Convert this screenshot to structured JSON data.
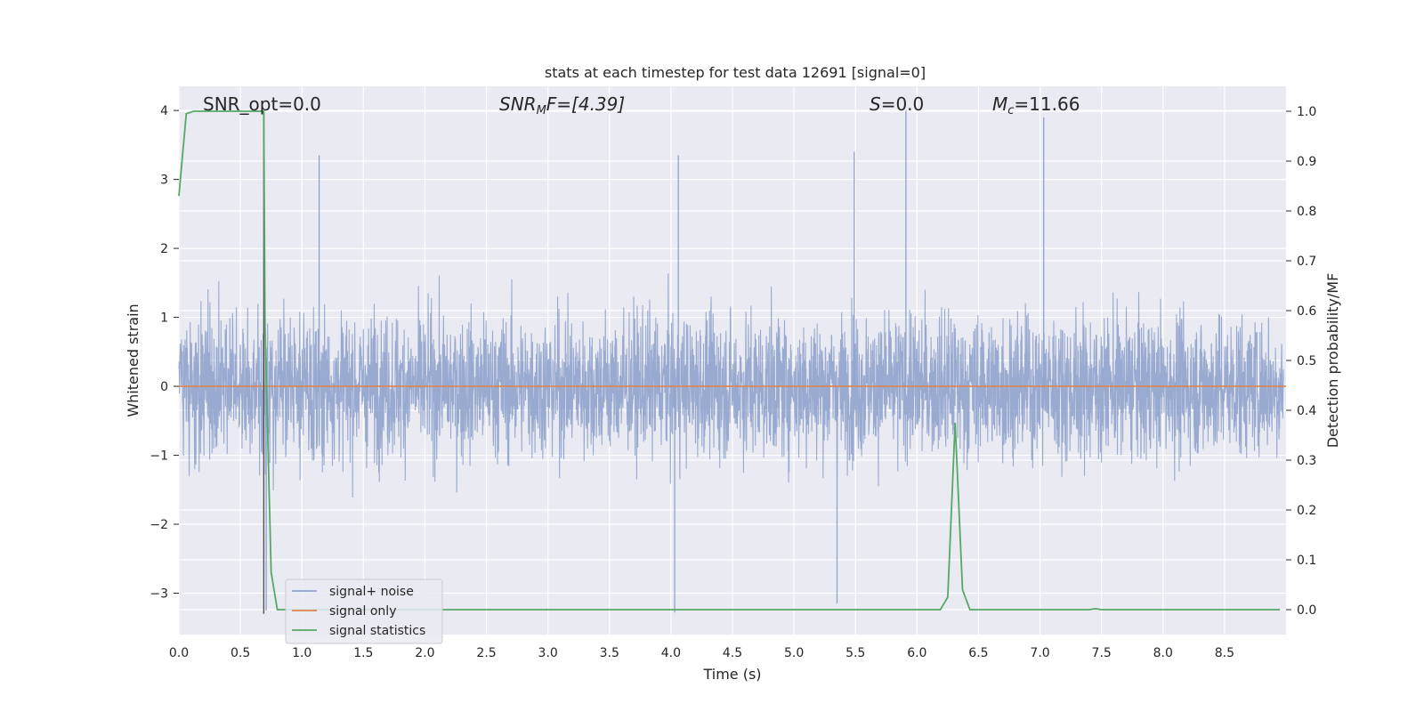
{
  "chart_data": {
    "type": "line",
    "title": "stats at each timestep for test data 12691 [signal=0]",
    "xlabel": "Time (s)",
    "ylabel_left": "Whitened strain",
    "ylabel_right": "Detection probability/MF",
    "xlim": [
      0.0,
      9.0
    ],
    "ylim_left": [
      -3.6,
      4.35
    ],
    "ylim_right": [
      -0.05,
      1.05
    ],
    "xticks": [
      "0.0",
      "0.5",
      "1.0",
      "1.5",
      "2.0",
      "2.5",
      "3.0",
      "3.5",
      "4.0",
      "4.5",
      "5.0",
      "5.5",
      "6.0",
      "6.5",
      "7.0",
      "7.5",
      "8.0",
      "8.5"
    ],
    "yticks_left": [
      "4",
      "3",
      "2",
      "1",
      "0",
      "−1",
      "−2",
      "−3"
    ],
    "yticks_right": [
      "1.0",
      "0.9",
      "0.8",
      "0.7",
      "0.6",
      "0.5",
      "0.4",
      "0.3",
      "0.2",
      "0.1",
      "0.0"
    ],
    "grid": true,
    "legend_position": "lower-left",
    "annotations": {
      "snr_opt": "SNR_opt=0.0",
      "snr_mf_main": "SNR",
      "snr_mf_sub": "M",
      "snr_mf_rest": "F=[4.39]",
      "s_main": "S",
      "s_rest": "=0.0",
      "mc_main": "M",
      "mc_sub": "c",
      "mc_rest": "=11.66"
    },
    "vertical_marker_x": 0.69,
    "series": [
      {
        "name": "signal+ noise",
        "color": "#8fa3cc",
        "axis": "left",
        "description_envelope": {
          "typical_max": 1.8,
          "typical_min": -1.8,
          "peak_max": 4.0,
          "peak_min": -3.3,
          "samples": 4096
        }
      },
      {
        "name": "signal only",
        "color": "#dd8452",
        "axis": "left",
        "x": [
          0.0,
          9.0
        ],
        "y": [
          0.0,
          0.0
        ]
      },
      {
        "name": "signal statistics",
        "color": "#55a868",
        "axis": "right",
        "x": [
          0.0,
          0.06,
          0.12,
          0.2,
          0.3,
          0.4,
          0.5,
          0.6,
          0.69,
          0.7,
          0.75,
          0.8,
          0.9,
          1.0,
          2.0,
          3.0,
          4.0,
          5.0,
          6.0,
          6.19,
          6.25,
          6.31,
          6.37,
          6.43,
          7.0,
          7.4,
          7.45,
          7.5,
          8.0,
          8.95
        ],
        "y": [
          0.83,
          0.995,
          1.0,
          1.0,
          1.0,
          1.0,
          1.0,
          1.0,
          1.0,
          0.57,
          0.075,
          0.0,
          0.0,
          0.0,
          0.0,
          0.0,
          0.0,
          0.0,
          0.0,
          0.0,
          0.025,
          0.375,
          0.04,
          0.0,
          0.0,
          0.0,
          0.002,
          0.0,
          0.0,
          0.0
        ]
      }
    ]
  }
}
